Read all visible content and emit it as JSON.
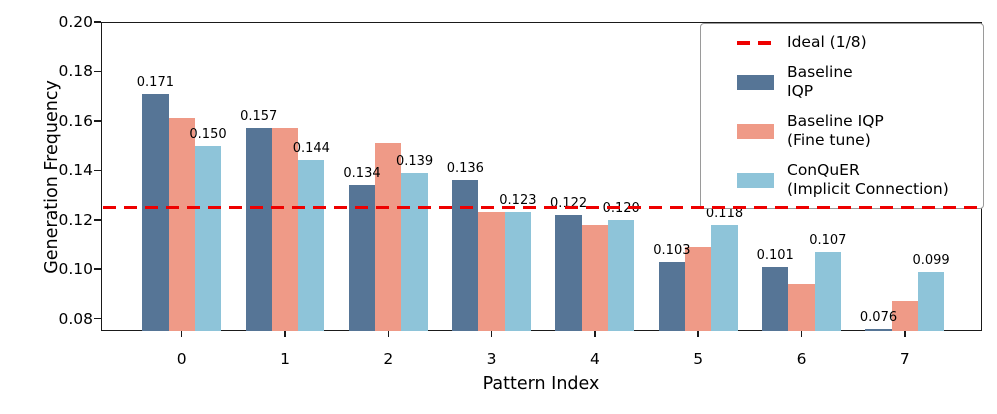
{
  "chart_data": {
    "type": "bar",
    "title": "",
    "xlabel": "Pattern Index",
    "ylabel": "Generation Frequency",
    "categories": [
      "0",
      "1",
      "2",
      "3",
      "4",
      "5",
      "6",
      "7"
    ],
    "ylim": [
      0.075,
      0.2
    ],
    "yticks": [
      "0.08",
      "0.10",
      "0.12",
      "0.14",
      "0.16",
      "0.18",
      "0.20"
    ],
    "grid": "horizontal dashed",
    "legend_position": "upper right inside",
    "ideal_line": {
      "value": 0.125,
      "label": "Ideal (1/8)",
      "color": "#EE0000",
      "style": "dashed"
    },
    "series": [
      {
        "name": "Baseline IQP",
        "color": "#567596",
        "values": [
          0.171,
          0.157,
          0.134,
          0.136,
          0.122,
          0.103,
          0.101,
          0.076
        ],
        "bar_labels": [
          "0.171",
          "0.157",
          "0.134",
          "0.136",
          "0.122",
          "0.103",
          "0.101",
          "0.076"
        ]
      },
      {
        "name": "Baseline IQP (Fine tune)",
        "color": "#EF9A87",
        "values": [
          0.161,
          0.157,
          0.151,
          0.123,
          0.118,
          0.109,
          0.094,
          0.087
        ],
        "bar_labels": null
      },
      {
        "name": "ConQuER (Implicit Connection)",
        "color": "#8EC4D9",
        "values": [
          0.15,
          0.144,
          0.139,
          0.123,
          0.12,
          0.118,
          0.107,
          0.099
        ],
        "bar_labels": [
          "0.150",
          "0.144",
          "0.139",
          "0.123",
          "0.120",
          "0.118",
          "0.107",
          "0.099"
        ]
      }
    ],
    "legend_entries": [
      {
        "marker": "dashed-line",
        "color": "#EE0000",
        "lines": [
          "Ideal (1/8)"
        ]
      },
      {
        "marker": "patch",
        "color": "#567596",
        "lines": [
          "Baseline",
          "IQP"
        ]
      },
      {
        "marker": "patch",
        "color": "#EF9A87",
        "lines": [
          "Baseline IQP",
          "(Fine tune)"
        ]
      },
      {
        "marker": "patch",
        "color": "#8EC4D9",
        "lines": [
          "ConQuER",
          "(Implicit Connection)"
        ]
      }
    ]
  }
}
